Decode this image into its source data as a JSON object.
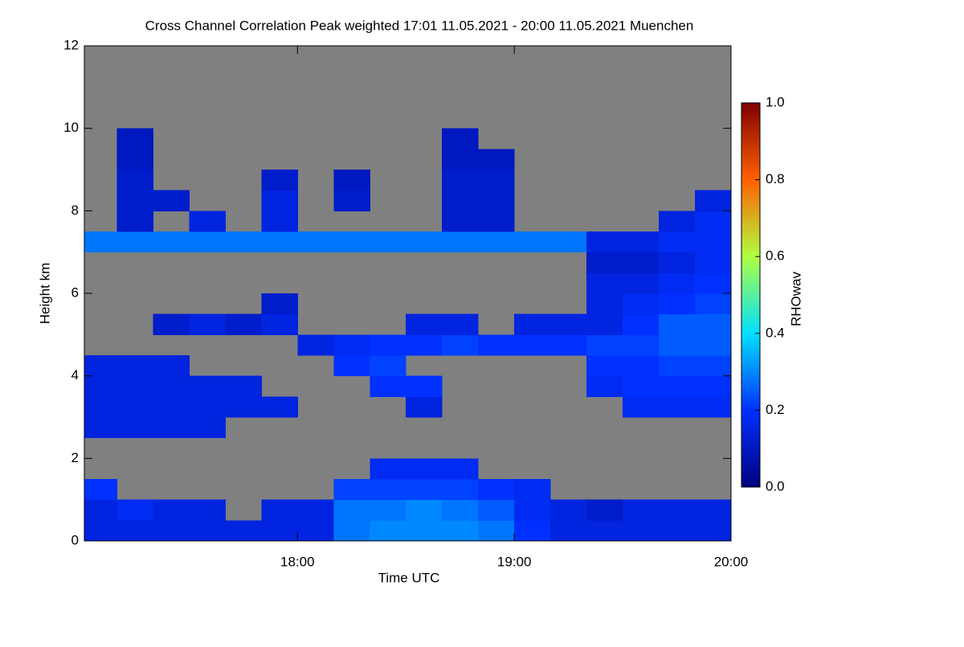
{
  "chart_data": {
    "type": "heatmap",
    "title": "Cross Channel Correlation Peak weighted   17:01 11.05.2021 - 20:00 11.05.2021 Muenchen",
    "x_label": "Time UTC",
    "y_label": "Height km",
    "colorbar_label": "RHOwav",
    "xlim": [
      17.0167,
      20.0
    ],
    "xticks": [
      {
        "value": 18,
        "label": "18:00"
      },
      {
        "value": 19,
        "label": "19:00"
      },
      {
        "value": 20,
        "label": "20:00"
      }
    ],
    "ylim": [
      0,
      12
    ],
    "yticks": [
      0,
      2,
      4,
      6,
      8,
      10,
      12
    ],
    "clim": [
      0,
      1
    ],
    "cticks": [
      {
        "value": 0,
        "label": "0.0"
      },
      {
        "value": 0.2,
        "label": "0.2"
      },
      {
        "value": 0.4,
        "label": "0.4"
      },
      {
        "value": 0.6,
        "label": "0.6"
      },
      {
        "value": 0.8,
        "label": "0.8"
      },
      {
        "value": 1,
        "label": "1.0"
      }
    ],
    "colormap": [
      "#000080",
      "#0030ff",
      "#00e0ff",
      "#b0ff40",
      "#ff6000",
      "#800000"
    ],
    "missing_color": "#808080",
    "x": [
      17.0167,
      17.1667,
      17.3333,
      17.5,
      17.6667,
      17.8333,
      18,
      18.1667,
      18.3333,
      18.5,
      18.6667,
      18.8333,
      19,
      19.1667,
      19.3333,
      19.5,
      19.6667,
      19.8333,
      20
    ],
    "y": [
      0,
      0.5,
      1,
      1.5,
      2,
      2.5,
      3,
      3.5,
      4,
      4.5,
      5,
      5.5,
      6,
      6.5,
      7,
      7.5,
      8,
      8.5,
      9,
      9.5,
      10,
      10.5,
      11,
      11.5,
      12
    ],
    "values": [
      [
        0.15,
        0.15,
        0.15,
        0.15,
        0.15,
        0.15,
        0.15,
        0.28,
        0.3,
        0.3,
        0.3,
        0.28,
        0.2,
        0.15,
        0.15,
        0.15,
        0.15,
        0.15
      ],
      [
        0.15,
        0.18,
        0.15,
        0.15,
        null,
        0.15,
        0.15,
        0.28,
        0.28,
        0.3,
        0.28,
        0.25,
        0.18,
        0.15,
        0.12,
        0.15,
        0.15,
        0.15
      ],
      [
        0.2,
        null,
        null,
        null,
        null,
        null,
        null,
        0.22,
        0.22,
        0.22,
        0.22,
        0.2,
        0.18,
        null,
        null,
        null,
        null,
        null
      ],
      [
        null,
        null,
        null,
        null,
        null,
        null,
        null,
        null,
        0.18,
        0.18,
        0.18,
        null,
        null,
        null,
        null,
        null,
        null,
        null
      ],
      [
        null,
        null,
        null,
        null,
        null,
        null,
        null,
        null,
        null,
        null,
        null,
        null,
        null,
        null,
        null,
        null,
        null,
        null
      ],
      [
        0.15,
        0.15,
        0.15,
        0.15,
        null,
        null,
        null,
        null,
        null,
        null,
        null,
        null,
        null,
        null,
        null,
        null,
        null,
        null
      ],
      [
        0.15,
        0.15,
        0.15,
        0.15,
        0.15,
        0.15,
        null,
        null,
        null,
        0.15,
        null,
        null,
        null,
        null,
        null,
        0.18,
        0.18,
        0.18
      ],
      [
        0.15,
        0.15,
        0.15,
        0.15,
        0.15,
        null,
        null,
        null,
        0.2,
        0.2,
        null,
        null,
        null,
        null,
        0.18,
        0.2,
        0.2,
        0.2
      ],
      [
        0.15,
        0.15,
        0.15,
        null,
        null,
        null,
        null,
        0.2,
        0.22,
        null,
        null,
        null,
        null,
        null,
        0.2,
        0.2,
        0.22,
        0.22
      ],
      [
        null,
        null,
        null,
        null,
        null,
        null,
        0.15,
        0.18,
        0.2,
        0.2,
        0.22,
        0.2,
        0.2,
        0.2,
        0.22,
        0.22,
        0.25,
        0.25
      ],
      [
        null,
        null,
        0.12,
        0.15,
        0.12,
        0.15,
        null,
        null,
        null,
        0.15,
        0.15,
        null,
        0.15,
        0.15,
        0.15,
        0.2,
        0.25,
        0.25
      ],
      [
        null,
        null,
        null,
        null,
        null,
        0.12,
        null,
        null,
        null,
        null,
        null,
        null,
        null,
        null,
        0.15,
        0.18,
        0.2,
        0.22
      ],
      [
        null,
        null,
        null,
        null,
        null,
        null,
        null,
        null,
        null,
        null,
        null,
        null,
        null,
        null,
        0.15,
        0.15,
        0.18,
        0.2
      ],
      [
        null,
        null,
        null,
        null,
        null,
        null,
        null,
        null,
        null,
        null,
        null,
        null,
        null,
        null,
        0.12,
        0.12,
        0.15,
        0.18
      ],
      [
        0.28,
        0.28,
        0.28,
        0.28,
        0.28,
        0.28,
        0.28,
        0.28,
        0.28,
        0.28,
        0.28,
        0.28,
        0.28,
        0.28,
        0.15,
        0.15,
        0.18,
        0.18
      ],
      [
        null,
        0.12,
        null,
        0.15,
        null,
        0.15,
        null,
        null,
        null,
        null,
        0.12,
        0.12,
        null,
        null,
        null,
        null,
        0.15,
        0.18
      ],
      [
        null,
        0.12,
        0.12,
        null,
        null,
        0.15,
        null,
        0.12,
        null,
        null,
        0.12,
        0.12,
        null,
        null,
        null,
        null,
        null,
        0.15
      ],
      [
        null,
        0.12,
        null,
        null,
        null,
        0.12,
        null,
        0.1,
        null,
        null,
        0.12,
        0.12,
        null,
        null,
        null,
        null,
        null,
        null
      ],
      [
        null,
        0.1,
        null,
        null,
        null,
        null,
        null,
        null,
        null,
        null,
        0.1,
        0.1,
        null,
        null,
        null,
        null,
        null,
        null
      ],
      [
        null,
        0.1,
        null,
        null,
        null,
        null,
        null,
        null,
        null,
        null,
        0.1,
        null,
        null,
        null,
        null,
        null,
        null,
        null
      ],
      [
        null,
        null,
        null,
        null,
        null,
        null,
        null,
        null,
        null,
        null,
        null,
        null,
        null,
        null,
        null,
        null,
        null,
        null
      ],
      [
        null,
        null,
        null,
        null,
        null,
        null,
        null,
        null,
        null,
        null,
        null,
        null,
        null,
        null,
        null,
        null,
        null,
        null
      ],
      [
        null,
        null,
        null,
        null,
        null,
        null,
        null,
        null,
        null,
        null,
        null,
        null,
        null,
        null,
        null,
        null,
        null,
        null
      ],
      [
        null,
        null,
        null,
        null,
        null,
        null,
        null,
        null,
        null,
        null,
        null,
        null,
        null,
        null,
        null,
        null,
        null,
        null
      ]
    ]
  }
}
